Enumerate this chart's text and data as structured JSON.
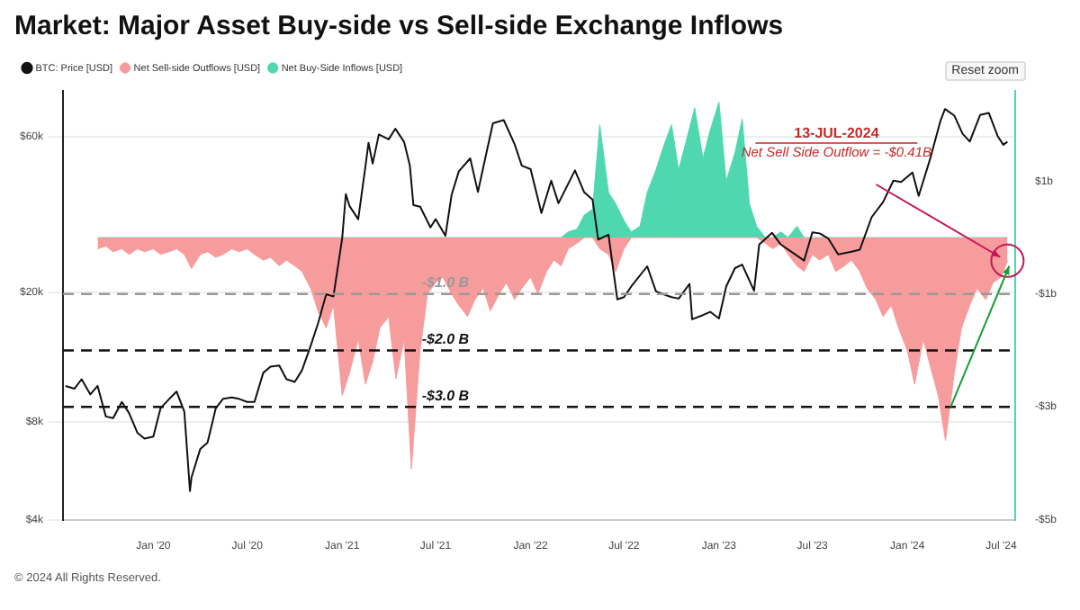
{
  "chart_data": {
    "type": "area",
    "title": "Market: Major Asset Buy-side vs Sell-side Exchange Inflows",
    "x": [
      "2019-09-15",
      "2019-10-01",
      "2019-10-15",
      "2019-11-01",
      "2019-11-15",
      "2019-12-01",
      "2019-12-15",
      "2020-01-01",
      "2020-01-15",
      "2020-02-01",
      "2020-02-15",
      "2020-03-01",
      "2020-03-15",
      "2020-04-01",
      "2020-04-15",
      "2020-05-01",
      "2020-05-15",
      "2020-06-01",
      "2020-06-15",
      "2020-07-01",
      "2020-07-15",
      "2020-08-01",
      "2020-08-15",
      "2020-09-01",
      "2020-09-15",
      "2020-10-01",
      "2020-10-15",
      "2020-11-01",
      "2020-11-15",
      "2020-12-01",
      "2020-12-15",
      "2021-01-01",
      "2021-01-15",
      "2021-02-01",
      "2021-02-15",
      "2021-03-01",
      "2021-03-15",
      "2021-04-01",
      "2021-04-15",
      "2021-05-01",
      "2021-05-15",
      "2021-06-01",
      "2021-06-15",
      "2021-07-01",
      "2021-07-15",
      "2021-08-01",
      "2021-08-15",
      "2021-09-01",
      "2021-09-15",
      "2021-10-01",
      "2021-10-15",
      "2021-11-01",
      "2021-11-15",
      "2021-12-01",
      "2021-12-15",
      "2022-01-01",
      "2022-01-15",
      "2022-02-01",
      "2022-02-15",
      "2022-03-01",
      "2022-03-15",
      "2022-04-01",
      "2022-04-15",
      "2022-05-01",
      "2022-05-15",
      "2022-06-01",
      "2022-06-15",
      "2022-07-01",
      "2022-07-15",
      "2022-08-01",
      "2022-08-15",
      "2022-09-01",
      "2022-09-15",
      "2022-10-01",
      "2022-10-15",
      "2022-11-01",
      "2022-11-15",
      "2022-12-01",
      "2022-12-15",
      "2023-01-01",
      "2023-01-15",
      "2023-02-01",
      "2023-02-15",
      "2023-03-01",
      "2023-03-15",
      "2023-04-01",
      "2023-04-15",
      "2023-05-01",
      "2023-05-15",
      "2023-06-01",
      "2023-06-15",
      "2023-07-01",
      "2023-07-15",
      "2023-08-01",
      "2023-08-15",
      "2023-09-01",
      "2023-09-15",
      "2023-10-01",
      "2023-10-15",
      "2023-11-01",
      "2023-11-15",
      "2023-12-01",
      "2023-12-15",
      "2024-01-01",
      "2024-01-15",
      "2024-02-01",
      "2024-02-15",
      "2024-03-01",
      "2024-03-15",
      "2024-04-01",
      "2024-04-15",
      "2024-05-01",
      "2024-05-15",
      "2024-06-01",
      "2024-06-15",
      "2024-07-01",
      "2024-07-13"
    ],
    "series": [
      {
        "name": "BTC: Price [USD]",
        "type": "line",
        "color": "#111111",
        "axis": "y",
        "x": [
          "2019-07-15",
          "2019-08-01",
          "2019-08-15",
          "2019-09-01",
          "2019-09-15",
          "2019-10-01",
          "2019-10-15",
          "2019-11-01",
          "2019-11-15",
          "2019-12-01",
          "2019-12-15",
          "2020-01-01",
          "2020-01-15",
          "2020-02-01",
          "2020-02-15",
          "2020-03-01",
          "2020-03-12",
          "2020-03-15",
          "2020-04-01",
          "2020-04-15",
          "2020-05-01",
          "2020-05-15",
          "2020-06-01",
          "2020-06-15",
          "2020-07-01",
          "2020-07-15",
          "2020-08-01",
          "2020-08-15",
          "2020-09-01",
          "2020-09-15",
          "2020-10-01",
          "2020-10-15",
          "2020-11-01",
          "2020-11-15",
          "2020-12-01",
          "2020-12-15",
          "2021-01-01",
          "2021-01-08",
          "2021-01-15",
          "2021-02-01",
          "2021-02-15",
          "2021-02-21",
          "2021-03-01",
          "2021-03-13",
          "2021-04-01",
          "2021-04-14",
          "2021-05-01",
          "2021-05-12",
          "2021-05-19",
          "2021-06-01",
          "2021-06-21",
          "2021-07-01",
          "2021-07-20",
          "2021-08-01",
          "2021-08-15",
          "2021-09-06",
          "2021-09-21",
          "2021-10-01",
          "2021-10-20",
          "2021-11-10",
          "2021-12-01",
          "2021-12-15",
          "2022-01-01",
          "2022-01-22",
          "2022-02-10",
          "2022-02-24",
          "2022-03-28",
          "2022-04-15",
          "2022-05-01",
          "2022-05-12",
          "2022-06-01",
          "2022-06-18",
          "2022-07-01",
          "2022-07-15",
          "2022-08-15",
          "2022-09-01",
          "2022-09-15",
          "2022-10-01",
          "2022-10-15",
          "2022-11-05",
          "2022-11-10",
          "2022-12-01",
          "2022-12-15",
          "2023-01-01",
          "2023-01-15",
          "2023-02-01",
          "2023-02-15",
          "2023-03-10",
          "2023-03-20",
          "2023-04-14",
          "2023-05-01",
          "2023-06-15",
          "2023-07-01",
          "2023-07-15",
          "2023-08-01",
          "2023-08-20",
          "2023-09-15",
          "2023-10-01",
          "2023-10-24",
          "2023-11-15",
          "2023-12-05",
          "2023-12-20",
          "2024-01-11",
          "2024-01-23",
          "2024-02-15",
          "2024-03-05",
          "2024-03-14",
          "2024-04-01",
          "2024-04-17",
          "2024-05-01",
          "2024-05-21",
          "2024-06-07",
          "2024-06-24",
          "2024-07-05",
          "2024-07-13"
        ],
        "values": [
          10300,
          10100,
          10800,
          9700,
          10300,
          8300,
          8200,
          9200,
          8500,
          7400,
          7100,
          7200,
          8800,
          9400,
          9900,
          8600,
          4900,
          5400,
          6600,
          6900,
          8800,
          9400,
          9500,
          9400,
          9200,
          9200,
          11300,
          11800,
          11900,
          10800,
          10600,
          11500,
          13700,
          16000,
          19700,
          19400,
          29300,
          40000,
          36800,
          33500,
          48700,
          57500,
          49600,
          61000,
          58900,
          63500,
          57800,
          49000,
          37000,
          36600,
          31600,
          33500,
          29800,
          39800,
          47000,
          51500,
          40600,
          48100,
          66000,
          67500,
          57000,
          48900,
          47700,
          35000,
          44000,
          37500,
          47300,
          40500,
          38500,
          29000,
          30000,
          19000,
          19300,
          20800,
          24000,
          20100,
          19700,
          19300,
          19100,
          21200,
          16500,
          17000,
          17400,
          16600,
          20800,
          23700,
          24300,
          20200,
          28000,
          30400,
          28000,
          25000,
          30500,
          30300,
          29200,
          26100,
          26600,
          27000,
          34000,
          37800,
          44000,
          43600,
          46600,
          39500,
          51800,
          67000,
          73000,
          69700,
          61300,
          58000,
          70000,
          71000,
          60300,
          56700,
          57900
        ]
      },
      {
        "name": "Net Sell-side Outflows [USD]",
        "color": "#f79c9c",
        "axis": "y2",
        "values": [
          -0.2,
          -0.15,
          -0.25,
          -0.2,
          -0.3,
          -0.2,
          -0.25,
          -0.2,
          -0.3,
          -0.25,
          -0.2,
          -0.3,
          -0.55,
          -0.3,
          -0.25,
          -0.35,
          -0.3,
          -0.2,
          -0.25,
          -0.2,
          -0.3,
          -0.4,
          -0.35,
          -0.5,
          -0.4,
          -0.5,
          -0.6,
          -0.9,
          -1.3,
          -1.6,
          -1.2,
          -2.8,
          -2.4,
          -1.8,
          -2.6,
          -2.2,
          -1.6,
          -1.4,
          -2.5,
          -1.8,
          -4.1,
          -2.0,
          -1.0,
          -0.8,
          -0.7,
          -1.0,
          -1.2,
          -1.4,
          -1.1,
          -0.9,
          -1.3,
          -1.0,
          -0.8,
          -1.1,
          -0.9,
          -0.7,
          -1.0,
          -0.6,
          -0.4,
          -0.5,
          -0.2,
          -0.1,
          0,
          0,
          -0.2,
          -0.3,
          -0.6,
          -0.2,
          0,
          0,
          0,
          0,
          0,
          0,
          0,
          0,
          0,
          0,
          0,
          0,
          0,
          0,
          0,
          0,
          0,
          -0.1,
          -0.2,
          -0.1,
          -0.3,
          -0.5,
          -0.6,
          -0.3,
          -0.4,
          -0.3,
          -0.6,
          -0.5,
          -0.4,
          -0.6,
          -0.9,
          -1.1,
          -1.4,
          -1.2,
          -1.6,
          -2.0,
          -2.6,
          -1.8,
          -2.3,
          -2.8,
          -3.6,
          -2.4,
          -1.6,
          -1.2,
          -0.9,
          -1.1,
          -0.8,
          -0.7,
          -0.41
        ]
      },
      {
        "name": "Net Buy-Side Inflows [USD]",
        "color": "#4fd8b0",
        "axis": "y2",
        "values": [
          0,
          0,
          0,
          0,
          0,
          0,
          0,
          0,
          0,
          0,
          0,
          0,
          0,
          0,
          0,
          0,
          0,
          0,
          0,
          0,
          0,
          0,
          0,
          0,
          0,
          0,
          0,
          0,
          0,
          0,
          0,
          0,
          0,
          0,
          0,
          0,
          0,
          0,
          0,
          0,
          0,
          0,
          0,
          0,
          0,
          0,
          0,
          0,
          0,
          0,
          0,
          0,
          0,
          0,
          0,
          0,
          0,
          0,
          0,
          0,
          0.1,
          0.15,
          0.4,
          0.5,
          2.0,
          0.8,
          0.6,
          0.3,
          0.1,
          0.2,
          0.8,
          1.2,
          1.6,
          2.0,
          1.2,
          1.8,
          2.3,
          1.4,
          1.9,
          2.4,
          1.0,
          1.5,
          2.1,
          0.6,
          0.2,
          0,
          0,
          0.1,
          0,
          0.2,
          0,
          0,
          0,
          0,
          0,
          0,
          0,
          0,
          0,
          0,
          0,
          0,
          0,
          0,
          0,
          0,
          0,
          0,
          0,
          0,
          0,
          0,
          0,
          0,
          0,
          0,
          0
        ]
      }
    ],
    "xlim": [
      "2019-07-10",
      "2024-07-28"
    ],
    "xticks": [
      {
        "value": "2020-01-01",
        "label": "Jan '20"
      },
      {
        "value": "2020-07-01",
        "label": "Jul '20"
      },
      {
        "value": "2021-01-01",
        "label": "Jan '21"
      },
      {
        "value": "2021-07-01",
        "label": "Jul '21"
      },
      {
        "value": "2022-01-01",
        "label": "Jan '22"
      },
      {
        "value": "2022-07-01",
        "label": "Jul '22"
      },
      {
        "value": "2023-01-01",
        "label": "Jan '23"
      },
      {
        "value": "2023-07-01",
        "label": "Jul '23"
      },
      {
        "value": "2024-01-01",
        "label": "Jan '24"
      },
      {
        "value": "2024-07-01",
        "label": "Jul '24"
      }
    ],
    "log": "y",
    "ylim": [
      4000,
      83000
    ],
    "yticks": [
      {
        "value": 4000,
        "label": "$4k"
      },
      {
        "value": 8000,
        "label": "$8k"
      },
      {
        "value": 20000,
        "label": "$20k"
      },
      {
        "value": 60000,
        "label": "$60k"
      }
    ],
    "y2lim": [
      -5,
      2.6
    ],
    "y2ticks": [
      {
        "value": 1,
        "label": "$1b"
      },
      {
        "value": -1,
        "label": "-$1b"
      },
      {
        "value": -3,
        "label": "-$3b"
      },
      {
        "value": -5,
        "label": "-$5b"
      }
    ],
    "ref_lines": [
      {
        "axis": "y2",
        "value": -1,
        "label": "-$1.0 B",
        "color": "#999999",
        "line_style": "dashed"
      },
      {
        "axis": "y2",
        "value": -2,
        "label": "-$2.0 B",
        "color": "#111111",
        "line_style": "dashed"
      },
      {
        "axis": "y2",
        "value": -3,
        "label": "-$3.0 B",
        "color": "#111111",
        "line_style": "dashed"
      }
    ],
    "annotations": [
      "13-JUL-2024",
      "Net Sell Side Outflow = -$0.41B",
      "Reset zoom",
      "© 2024 All Rights Reserved."
    ],
    "grid": "y",
    "marker": "none",
    "line_style": "solid",
    "legend": "top left"
  }
}
